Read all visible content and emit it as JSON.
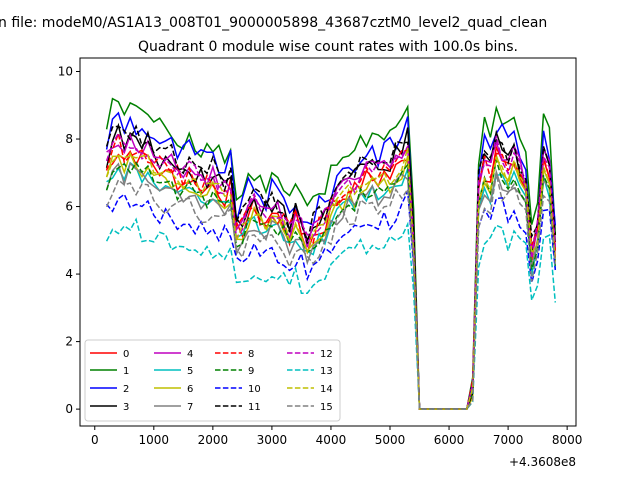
{
  "chart_data": {
    "type": "line",
    "suptitle": "n file: modeM0/AS1A13_008T01_9000005898_43687cztM0_level2_quad_clean",
    "title": "Quadrant 0 module wise count rates with 100.0s bins.",
    "xlabel": "",
    "ylabel": "",
    "x_offset_label": "+4.3608e8",
    "xlim": [
      -250,
      8150
    ],
    "ylim": [
      -0.5,
      10.4
    ],
    "x_ticks": [
      0,
      1000,
      2000,
      3000,
      4000,
      5000,
      6000,
      7000,
      8000
    ],
    "y_ticks": [
      0,
      2,
      4,
      6,
      8,
      10
    ],
    "grid": false,
    "legend": {
      "placement": "lower-left",
      "columns": 4
    },
    "x": [
      200,
      300,
      400,
      500,
      600,
      700,
      800,
      900,
      1000,
      1100,
      1200,
      1300,
      1400,
      1500,
      1600,
      1700,
      1800,
      1900,
      2000,
      2100,
      2200,
      2300,
      2400,
      2500,
      2600,
      2700,
      2800,
      2900,
      3000,
      3100,
      3200,
      3300,
      3400,
      3500,
      3600,
      3700,
      3800,
      3900,
      4000,
      4100,
      4200,
      4300,
      4400,
      4500,
      4600,
      4700,
      4800,
      4900,
      5000,
      5100,
      5200,
      5300,
      5400,
      5500,
      5600,
      5700,
      5800,
      5900,
      6000,
      6100,
      6200,
      6300,
      6400,
      6500,
      6600,
      6700,
      6800,
      6900,
      7000,
      7100,
      7200,
      7300,
      7400,
      7500,
      7600,
      7700,
      7800
    ],
    "base_profile": [
      7.6,
      8.1,
      8.3,
      8.0,
      8.2,
      8.1,
      7.9,
      8.0,
      7.8,
      7.6,
      7.4,
      7.5,
      7.3,
      7.2,
      7.4,
      7.2,
      7.1,
      7.0,
      7.2,
      7.0,
      6.8,
      7.0,
      5.6,
      5.8,
      6.2,
      6.4,
      6.1,
      6.0,
      6.2,
      6.1,
      5.9,
      5.5,
      6.0,
      5.6,
      5.2,
      5.5,
      5.7,
      5.9,
      6.3,
      6.6,
      6.8,
      7.0,
      6.9,
      7.2,
      7.3,
      7.4,
      7.3,
      7.5,
      7.4,
      7.6,
      7.8,
      8.2,
      5.2,
      0,
      0,
      0,
      0,
      0,
      0,
      0,
      0,
      0,
      0.6,
      6.8,
      7.6,
      7.3,
      8.2,
      7.8,
      7.5,
      7.9,
      7.4,
      7.0,
      4.8,
      5.6,
      8.0,
      7.4,
      5.0
    ],
    "series": [
      {
        "name": "0",
        "color": "#ff0000",
        "style": "solid",
        "scale": 0.93,
        "jitter": 0.35
      },
      {
        "name": "1",
        "color": "#008000",
        "style": "solid",
        "scale": 1.1,
        "jitter": 0.35
      },
      {
        "name": "2",
        "color": "#0000ff",
        "style": "solid",
        "scale": 1.04,
        "jitter": 0.4
      },
      {
        "name": "3",
        "color": "#000000",
        "style": "solid",
        "scale": 0.98,
        "jitter": 0.35
      },
      {
        "name": "4",
        "color": "#bf00bf",
        "style": "solid",
        "scale": 0.97,
        "jitter": 0.3
      },
      {
        "name": "5",
        "color": "#00bfbf",
        "style": "solid",
        "scale": 0.87,
        "jitter": 0.25
      },
      {
        "name": "6",
        "color": "#bfbf00",
        "style": "solid",
        "scale": 0.9,
        "jitter": 0.25
      },
      {
        "name": "7",
        "color": "#808080",
        "style": "solid",
        "scale": 0.86,
        "jitter": 0.25
      },
      {
        "name": "8",
        "color": "#ff0000",
        "style": "dashed",
        "scale": 0.95,
        "jitter": 0.3
      },
      {
        "name": "9",
        "color": "#008000",
        "style": "dashed",
        "scale": 0.88,
        "jitter": 0.25
      },
      {
        "name": "10",
        "color": "#0000ff",
        "style": "dashed",
        "scale": 0.76,
        "jitter": 0.35
      },
      {
        "name": "11",
        "color": "#000000",
        "style": "dashed",
        "scale": 1.0,
        "jitter": 0.35
      },
      {
        "name": "12",
        "color": "#bf00bf",
        "style": "dashed",
        "scale": 0.96,
        "jitter": 0.3
      },
      {
        "name": "13",
        "color": "#00bfbf",
        "style": "dashed",
        "scale": 0.66,
        "jitter": 0.3
      },
      {
        "name": "14",
        "color": "#bfbf00",
        "style": "dashed",
        "scale": 0.92,
        "jitter": 0.25
      },
      {
        "name": "15",
        "color": "#808080",
        "style": "dashed",
        "scale": 0.82,
        "jitter": 0.3
      }
    ]
  }
}
